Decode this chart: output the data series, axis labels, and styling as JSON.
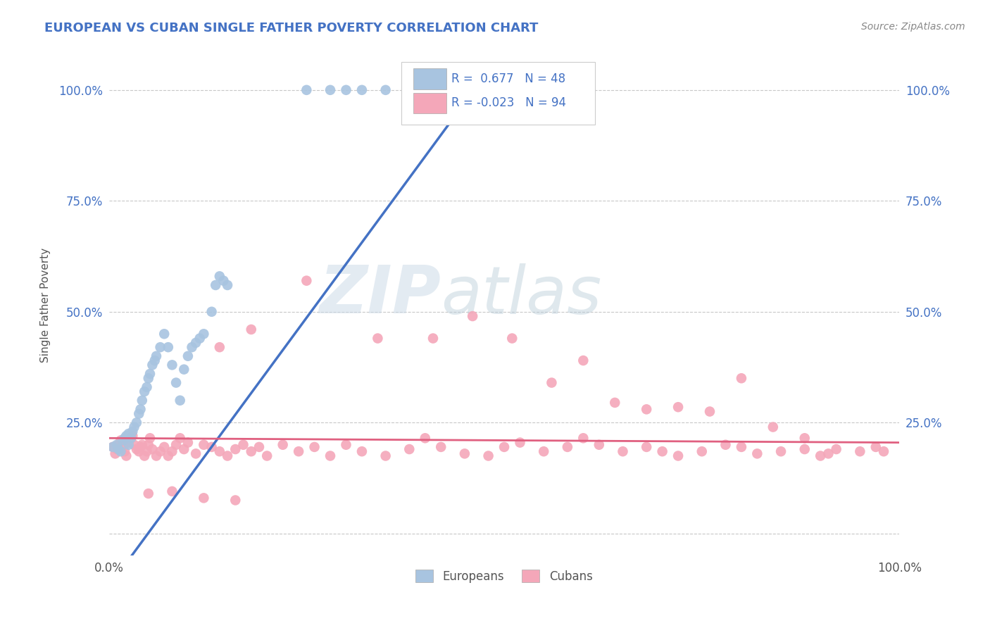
{
  "title": "EUROPEAN VS CUBAN SINGLE FATHER POVERTY CORRELATION CHART",
  "source": "Source: ZipAtlas.com",
  "ylabel": "Single Father Poverty",
  "xlim": [
    0.0,
    1.0
  ],
  "ylim": [
    -0.05,
    1.08
  ],
  "ytick_positions": [
    0.0,
    0.25,
    0.5,
    0.75,
    1.0
  ],
  "ytick_labels_left": [
    "",
    "25.0%",
    "50.0%",
    "75.0%",
    "100.0%"
  ],
  "ytick_labels_right": [
    "",
    "25.0%",
    "50.0%",
    "75.0%",
    "100.0%"
  ],
  "european_R": 0.677,
  "european_N": 48,
  "cuban_R": -0.023,
  "cuban_N": 94,
  "european_color": "#a8c4e0",
  "cuban_color": "#f4a7b9",
  "european_line_color": "#4472c4",
  "cuban_line_color": "#e06080",
  "background_color": "#ffffff",
  "grid_color": "#c8c8c8",
  "title_color": "#4472c4",
  "tick_color": "#4472c4",
  "axis_label_color": "#555555",
  "source_color": "#888888",
  "legend_text_color": "#4472c4",
  "watermark_zip_color": "#c8d8e8",
  "watermark_atlas_color": "#c8d8e8",
  "euro_x": [
    0.005,
    0.01,
    0.012,
    0.015,
    0.018,
    0.02,
    0.022,
    0.025,
    0.025,
    0.028,
    0.03,
    0.032,
    0.035,
    0.038,
    0.04,
    0.042,
    0.045,
    0.048,
    0.05,
    0.052,
    0.055,
    0.058,
    0.06,
    0.065,
    0.07,
    0.075,
    0.08,
    0.085,
    0.09,
    0.095,
    0.1,
    0.105,
    0.11,
    0.115,
    0.12,
    0.13,
    0.135,
    0.14,
    0.145,
    0.15,
    0.25,
    0.28,
    0.3,
    0.32,
    0.35,
    0.38,
    0.41,
    0.44
  ],
  "euro_y": [
    0.195,
    0.2,
    0.19,
    0.185,
    0.21,
    0.215,
    0.22,
    0.225,
    0.2,
    0.215,
    0.23,
    0.24,
    0.25,
    0.27,
    0.28,
    0.3,
    0.32,
    0.33,
    0.35,
    0.36,
    0.38,
    0.39,
    0.4,
    0.42,
    0.45,
    0.42,
    0.38,
    0.34,
    0.3,
    0.37,
    0.4,
    0.42,
    0.43,
    0.44,
    0.45,
    0.5,
    0.56,
    0.58,
    0.57,
    0.56,
    1.0,
    1.0,
    1.0,
    1.0,
    1.0,
    1.0,
    1.0,
    1.0
  ],
  "cuban_x": [
    0.005,
    0.008,
    0.01,
    0.012,
    0.015,
    0.018,
    0.02,
    0.022,
    0.025,
    0.028,
    0.03,
    0.032,
    0.035,
    0.038,
    0.04,
    0.042,
    0.045,
    0.048,
    0.05,
    0.052,
    0.055,
    0.06,
    0.065,
    0.07,
    0.075,
    0.08,
    0.085,
    0.09,
    0.095,
    0.1,
    0.11,
    0.12,
    0.13,
    0.14,
    0.15,
    0.16,
    0.17,
    0.18,
    0.19,
    0.2,
    0.22,
    0.24,
    0.26,
    0.28,
    0.3,
    0.32,
    0.35,
    0.38,
    0.4,
    0.42,
    0.45,
    0.48,
    0.5,
    0.52,
    0.55,
    0.58,
    0.6,
    0.62,
    0.65,
    0.68,
    0.7,
    0.72,
    0.75,
    0.78,
    0.8,
    0.82,
    0.85,
    0.88,
    0.9,
    0.92,
    0.95,
    0.97,
    0.98,
    0.14,
    0.18,
    0.25,
    0.34,
    0.41,
    0.46,
    0.51,
    0.56,
    0.6,
    0.64,
    0.68,
    0.72,
    0.76,
    0.8,
    0.84,
    0.88,
    0.91,
    0.05,
    0.08,
    0.12,
    0.16
  ],
  "cuban_y": [
    0.195,
    0.18,
    0.19,
    0.2,
    0.21,
    0.195,
    0.185,
    0.175,
    0.205,
    0.215,
    0.22,
    0.2,
    0.19,
    0.185,
    0.195,
    0.2,
    0.175,
    0.185,
    0.2,
    0.215,
    0.19,
    0.175,
    0.185,
    0.195,
    0.175,
    0.185,
    0.2,
    0.215,
    0.19,
    0.205,
    0.18,
    0.2,
    0.195,
    0.185,
    0.175,
    0.19,
    0.2,
    0.185,
    0.195,
    0.175,
    0.2,
    0.185,
    0.195,
    0.175,
    0.2,
    0.185,
    0.175,
    0.19,
    0.215,
    0.195,
    0.18,
    0.175,
    0.195,
    0.205,
    0.185,
    0.195,
    0.215,
    0.2,
    0.185,
    0.195,
    0.185,
    0.175,
    0.185,
    0.2,
    0.195,
    0.18,
    0.185,
    0.19,
    0.175,
    0.19,
    0.185,
    0.195,
    0.185,
    0.42,
    0.46,
    0.57,
    0.44,
    0.44,
    0.49,
    0.44,
    0.34,
    0.39,
    0.295,
    0.28,
    0.285,
    0.275,
    0.35,
    0.24,
    0.215,
    0.18,
    0.09,
    0.095,
    0.08,
    0.075
  ]
}
